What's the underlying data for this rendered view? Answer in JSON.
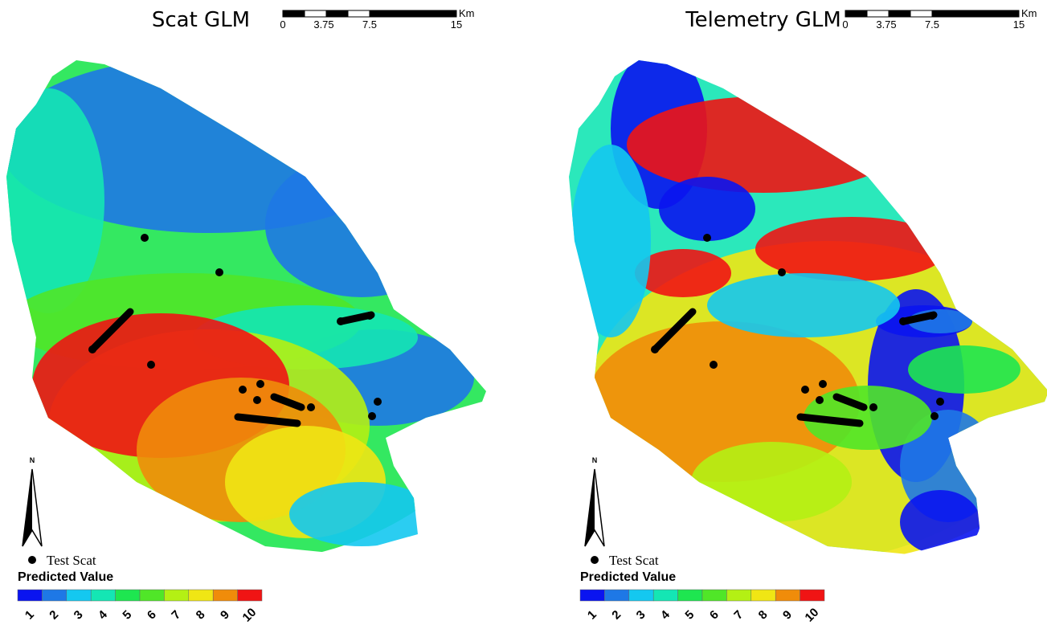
{
  "legend_colors": [
    "#0a14f0",
    "#1e78e6",
    "#14c8f0",
    "#14e6b4",
    "#1ee650",
    "#50e628",
    "#b4f014",
    "#f0e614",
    "#f08c0a",
    "#f01414"
  ],
  "panels": [
    {
      "title": "Scat GLM",
      "scale": {
        "labels": [
          "0",
          "3.75",
          "7.5",
          "15"
        ],
        "unit": "Km"
      },
      "north": "N",
      "legend": {
        "points": "Test Scat",
        "title": "Predicted Value",
        "classes": [
          "1",
          "2",
          "3",
          "4",
          "5",
          "6",
          "7",
          "8",
          "9",
          "10"
        ]
      }
    },
    {
      "title": "Telemetry GLM",
      "scale": {
        "labels": [
          "0",
          "3.75",
          "7.5",
          "15"
        ],
        "unit": "Km"
      },
      "north": "N",
      "legend": {
        "points": "Test Scat",
        "title": "Predicted Value",
        "classes": [
          "1",
          "2",
          "3",
          "4",
          "5",
          "6",
          "7",
          "8",
          "9",
          "10"
        ]
      }
    }
  ]
}
